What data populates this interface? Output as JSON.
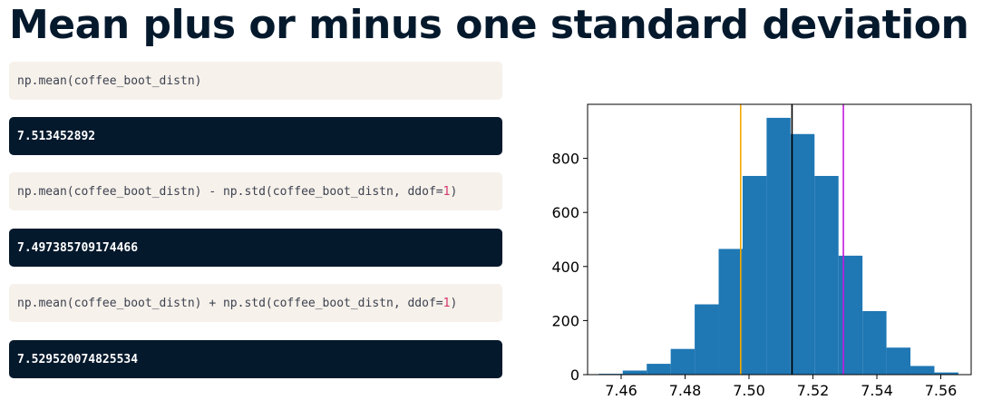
{
  "title": "Mean plus or minus one standard deviation",
  "cells": [
    {
      "type": "code",
      "text": "np.mean(coffee_boot_distn)"
    },
    {
      "type": "output",
      "text": "7.513452892"
    },
    {
      "type": "code",
      "text_before": "np.mean(coffee_boot_distn) - np.std(coffee_boot_distn, ddof=",
      "number": "1",
      "text_after": ")"
    },
    {
      "type": "output",
      "text": "7.497385709174466"
    },
    {
      "type": "code",
      "text_before": "np.mean(coffee_boot_distn) + np.std(coffee_boot_distn, ddof=",
      "number": "1",
      "text_after": ")"
    },
    {
      "type": "output",
      "text": "7.529520074825534"
    }
  ],
  "chart_data": {
    "type": "bar",
    "subtype": "histogram",
    "bins": [
      [
        7.453,
        7.4605,
        3
      ],
      [
        7.4605,
        7.468,
        15
      ],
      [
        7.468,
        7.4755,
        40
      ],
      [
        7.4755,
        7.483,
        95
      ],
      [
        7.483,
        7.4905,
        260
      ],
      [
        7.4905,
        7.498,
        465
      ],
      [
        7.498,
        7.5055,
        735
      ],
      [
        7.5055,
        7.513,
        950
      ],
      [
        7.513,
        7.5205,
        890
      ],
      [
        7.5205,
        7.528,
        735
      ],
      [
        7.528,
        7.5355,
        440
      ],
      [
        7.5355,
        7.543,
        235
      ],
      [
        7.543,
        7.5505,
        100
      ],
      [
        7.5505,
        7.558,
        32
      ],
      [
        7.558,
        7.5655,
        8
      ]
    ],
    "xlim": [
      7.4495,
      7.5695
    ],
    "ylim": [
      0,
      1000
    ],
    "xticks": [
      "7.46",
      "7.48",
      "7.50",
      "7.52",
      "7.54",
      "7.56"
    ],
    "yticks": [
      "0",
      "200",
      "400",
      "600",
      "800"
    ],
    "bar_color": "#1f77b4",
    "vlines": [
      {
        "x": 7.497385709174466,
        "color": "#f2a900"
      },
      {
        "x": 7.513452892,
        "color": "#000000"
      },
      {
        "x": 7.529520074825534,
        "color": "#c41be0"
      }
    ],
    "grid": false
  }
}
